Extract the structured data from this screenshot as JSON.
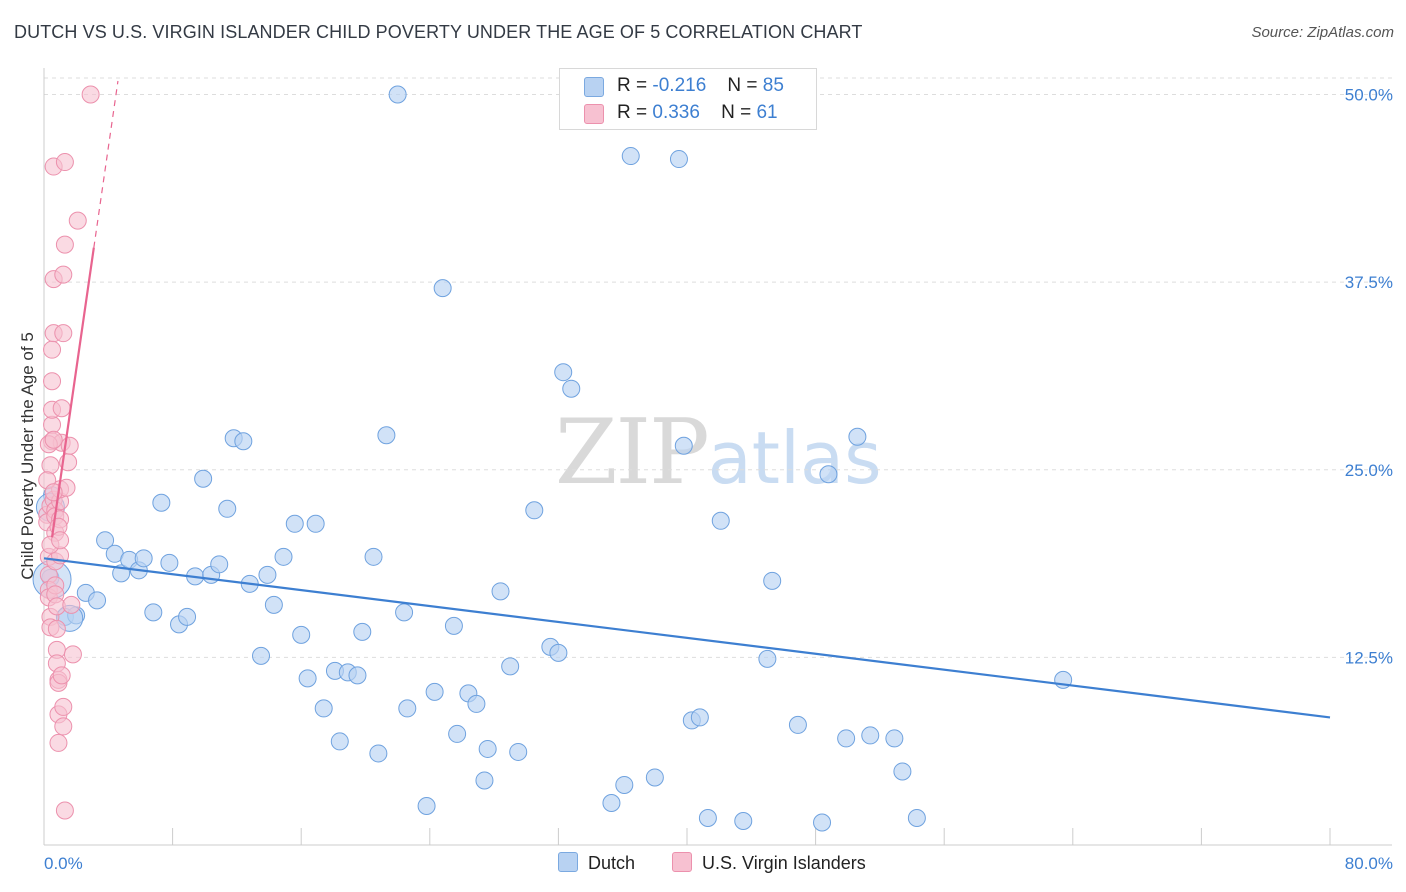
{
  "header": {
    "title": "DUTCH VS U.S. VIRGIN ISLANDER CHILD POVERTY UNDER THE AGE OF 5 CORRELATION CHART",
    "source": "Source: ZipAtlas.com"
  },
  "watermark": {
    "zip": "ZIP",
    "atlas": "atlas"
  },
  "legend_top": {
    "rows": [
      {
        "r_label": "R =",
        "r_value": "-0.216",
        "n_label": "N =",
        "n_value": "85",
        "color": "#b8d2f2"
      },
      {
        "r_label": "R =",
        "r_value": " 0.336",
        "n_label": "N =",
        "n_value": " 61",
        "color": "#f7c1d1"
      }
    ]
  },
  "legend_bottom": {
    "items": [
      {
        "label": "Dutch",
        "color": "#b8d2f2"
      },
      {
        "label": "U.S. Virgin Islanders",
        "color": "#f7c1d1"
      }
    ]
  },
  "chart_data": {
    "type": "scatter",
    "ylabel": "Child Poverty Under the Age of 5",
    "xlabel": "",
    "xlim": [
      0,
      80
    ],
    "ylim": [
      0,
      51.5
    ],
    "x_tick_labels": [
      "0.0%",
      "80.0%"
    ],
    "y_ticks": [
      {
        "value": 12.5,
        "label": "12.5%"
      },
      {
        "value": 25.0,
        "label": "25.0%"
      },
      {
        "value": 37.5,
        "label": "37.5%"
      },
      {
        "value": 50.0,
        "label": "50.0%"
      }
    ],
    "grid": "horizontal-dashed",
    "legend_position": "top-center",
    "colors": {
      "dutch": "#3d7fd1",
      "dutch_fill": "#b8d2f2",
      "usvi": "#e8648f",
      "usvi_fill": "#f7c1d1"
    },
    "series": [
      {
        "name": "Dutch",
        "regression": {
          "x": [
            0,
            80
          ],
          "y": [
            19.1,
            8.5
          ]
        },
        "points": [
          [
            0.4,
            17.8
          ],
          [
            0.5,
            23.3
          ],
          [
            1.3,
            15.2
          ],
          [
            2.0,
            15.3
          ],
          [
            2.6,
            16.8
          ],
          [
            3.3,
            16.3
          ],
          [
            3.8,
            20.3
          ],
          [
            4.4,
            19.4
          ],
          [
            4.8,
            18.1
          ],
          [
            5.3,
            19.0
          ],
          [
            5.9,
            18.3
          ],
          [
            6.2,
            19.1
          ],
          [
            6.8,
            15.5
          ],
          [
            7.3,
            22.8
          ],
          [
            7.8,
            18.8
          ],
          [
            8.4,
            14.7
          ],
          [
            8.9,
            15.2
          ],
          [
            9.4,
            17.9
          ],
          [
            9.9,
            24.4
          ],
          [
            10.4,
            18.0
          ],
          [
            10.9,
            18.7
          ],
          [
            11.4,
            22.4
          ],
          [
            11.8,
            27.1
          ],
          [
            12.4,
            26.9
          ],
          [
            12.8,
            17.4
          ],
          [
            13.5,
            12.6
          ],
          [
            13.9,
            18.0
          ],
          [
            14.3,
            16.0
          ],
          [
            14.9,
            19.2
          ],
          [
            15.6,
            21.4
          ],
          [
            16.0,
            14.0
          ],
          [
            16.4,
            11.1
          ],
          [
            16.9,
            21.4
          ],
          [
            17.4,
            9.1
          ],
          [
            18.1,
            11.6
          ],
          [
            18.4,
            6.9
          ],
          [
            18.9,
            11.5
          ],
          [
            19.5,
            11.3
          ],
          [
            19.8,
            14.2
          ],
          [
            20.5,
            19.2
          ],
          [
            20.8,
            6.1
          ],
          [
            21.3,
            27.3
          ],
          [
            22.0,
            50.0
          ],
          [
            22.4,
            15.5
          ],
          [
            22.6,
            9.1
          ],
          [
            23.8,
            2.6
          ],
          [
            24.3,
            10.2
          ],
          [
            24.8,
            37.1
          ],
          [
            25.5,
            14.6
          ],
          [
            25.7,
            7.4
          ],
          [
            26.4,
            10.1
          ],
          [
            26.9,
            9.4
          ],
          [
            27.4,
            4.3
          ],
          [
            27.6,
            6.4
          ],
          [
            28.4,
            16.9
          ],
          [
            29.0,
            11.9
          ],
          [
            29.5,
            6.2
          ],
          [
            30.5,
            22.3
          ],
          [
            31.5,
            13.2
          ],
          [
            32.0,
            12.8
          ],
          [
            32.3,
            31.5
          ],
          [
            32.8,
            30.4
          ],
          [
            35.3,
            2.8
          ],
          [
            36.1,
            4.0
          ],
          [
            36.5,
            45.9
          ],
          [
            39.5,
            45.7
          ],
          [
            39.8,
            26.6
          ],
          [
            40.3,
            8.3
          ],
          [
            40.8,
            8.5
          ],
          [
            41.3,
            1.8
          ],
          [
            42.1,
            21.6
          ],
          [
            43.5,
            1.6
          ],
          [
            45.0,
            12.4
          ],
          [
            45.3,
            17.6
          ],
          [
            46.9,
            8.0
          ],
          [
            48.4,
            1.5
          ],
          [
            48.8,
            24.7
          ],
          [
            49.9,
            7.1
          ],
          [
            50.6,
            27.2
          ],
          [
            51.4,
            7.3
          ],
          [
            52.9,
            7.1
          ],
          [
            53.4,
            4.9
          ],
          [
            54.3,
            1.8
          ],
          [
            63.4,
            11.0
          ],
          [
            38.0,
            4.5
          ]
        ]
      },
      {
        "name": "U.S. Virgin Islanders",
        "regression": {
          "x": [
            0.5,
            3.1
          ],
          "y": [
            20.5,
            39.8
          ],
          "dashed_extension": {
            "x": [
              3.1,
              4.6
            ],
            "y": [
              39.8,
              50.9
            ]
          }
        },
        "points": [
          [
            0.2,
            22.0
          ],
          [
            0.2,
            21.5
          ],
          [
            0.3,
            19.2
          ],
          [
            0.3,
            18.0
          ],
          [
            0.3,
            17.0
          ],
          [
            0.3,
            16.5
          ],
          [
            0.4,
            15.2
          ],
          [
            0.4,
            14.5
          ],
          [
            0.4,
            22.6
          ],
          [
            0.4,
            25.3
          ],
          [
            0.5,
            26.9
          ],
          [
            0.5,
            28.0
          ],
          [
            0.5,
            29.0
          ],
          [
            0.5,
            30.9
          ],
          [
            0.5,
            33.0
          ],
          [
            0.6,
            34.1
          ],
          [
            0.6,
            37.7
          ],
          [
            0.6,
            45.2
          ],
          [
            0.6,
            23.0
          ],
          [
            0.7,
            22.3
          ],
          [
            0.7,
            21.9
          ],
          [
            0.7,
            20.8
          ],
          [
            0.7,
            18.9
          ],
          [
            0.7,
            17.3
          ],
          [
            0.7,
            16.7
          ],
          [
            0.8,
            15.9
          ],
          [
            0.8,
            14.4
          ],
          [
            0.8,
            13.0
          ],
          [
            0.8,
            12.1
          ],
          [
            0.9,
            11.0
          ],
          [
            0.9,
            10.8
          ],
          [
            0.9,
            8.7
          ],
          [
            0.9,
            6.8
          ],
          [
            1.0,
            22.9
          ],
          [
            1.0,
            23.7
          ],
          [
            1.0,
            21.7
          ],
          [
            1.1,
            26.8
          ],
          [
            1.1,
            29.1
          ],
          [
            1.2,
            34.1
          ],
          [
            1.2,
            38.0
          ],
          [
            1.3,
            40.0
          ],
          [
            1.3,
            45.5
          ],
          [
            1.0,
            19.3
          ],
          [
            1.1,
            11.3
          ],
          [
            1.2,
            9.2
          ],
          [
            1.2,
            7.9
          ],
          [
            1.3,
            2.3
          ],
          [
            1.4,
            23.8
          ],
          [
            1.5,
            25.5
          ],
          [
            1.6,
            26.6
          ],
          [
            1.7,
            16.0
          ],
          [
            1.8,
            12.7
          ],
          [
            2.1,
            41.6
          ],
          [
            2.9,
            50.0
          ],
          [
            0.2,
            24.3
          ],
          [
            0.3,
            26.7
          ],
          [
            0.6,
            27.0
          ],
          [
            0.9,
            21.2
          ],
          [
            0.4,
            20.0
          ],
          [
            0.6,
            23.5
          ],
          [
            1.0,
            20.3
          ]
        ]
      }
    ]
  }
}
